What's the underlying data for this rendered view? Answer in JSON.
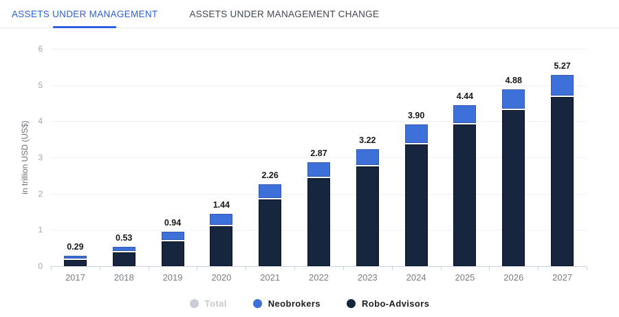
{
  "tabs": {
    "aum_label": "ASSETS UNDER MANAGEMENT",
    "aum_change_label": "ASSETS UNDER MANAGEMENT CHANGE",
    "active": "ASSETS UNDER MANAGEMENT"
  },
  "colors": {
    "tab_active": "#2b5fd6",
    "tab_inactive": "#3e4752",
    "neobrokers": "#3d70d9",
    "robo_advisors": "#16263e",
    "total_disabled": "#c9ced6",
    "gridline": "#edf0f4",
    "axis": "#c6d2e4"
  },
  "chart_data": {
    "type": "bar",
    "stacked": true,
    "title": "",
    "xlabel": "",
    "ylabel": "in trillion USD (US$)",
    "ylim": [
      0,
      6
    ],
    "yticks": [
      0,
      1,
      2,
      3,
      4,
      5,
      6
    ],
    "grid": true,
    "legend_position": "bottom",
    "categories": [
      "2017",
      "2018",
      "2019",
      "2020",
      "2021",
      "2022",
      "2023",
      "2024",
      "2025",
      "2026",
      "2027"
    ],
    "series": [
      {
        "name": "Robo-Advisors",
        "color": "#16263e",
        "values": [
          0.18,
          0.38,
          0.68,
          1.1,
          1.85,
          2.42,
          2.76,
          3.36,
          3.9,
          4.3,
          4.66
        ]
      },
      {
        "name": "Neobrokers",
        "color": "#3d70d9",
        "values": [
          0.11,
          0.15,
          0.26,
          0.34,
          0.41,
          0.45,
          0.46,
          0.54,
          0.54,
          0.58,
          0.61
        ]
      }
    ],
    "totals": [
      0.29,
      0.53,
      0.94,
      1.44,
      2.26,
      2.87,
      3.22,
      3.9,
      4.44,
      4.88,
      5.27
    ],
    "total_labels": [
      "0.29",
      "0.53",
      "0.94",
      "1.44",
      "2.26",
      "2.87",
      "3.22",
      "3.90",
      "4.44",
      "4.88",
      "5.27"
    ],
    "legend": [
      {
        "name": "Total",
        "color": "#c9ced6",
        "disabled": true
      },
      {
        "name": "Neobrokers",
        "color": "#3d70d9",
        "disabled": false
      },
      {
        "name": "Robo-Advisors",
        "color": "#16263e",
        "disabled": false
      }
    ]
  }
}
